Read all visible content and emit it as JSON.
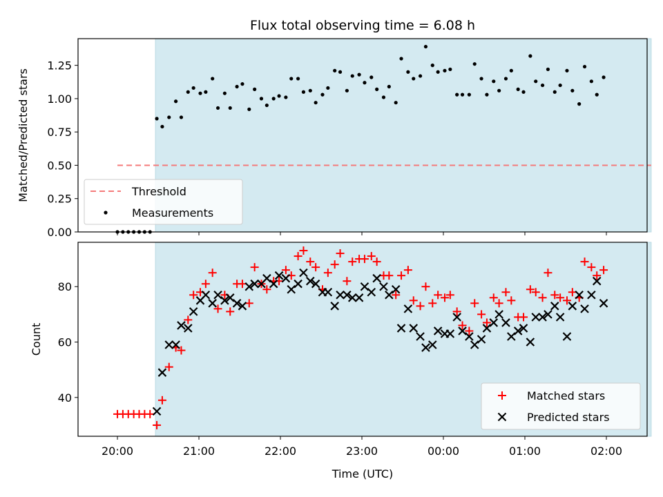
{
  "chart_data": [
    {
      "type": "scatter",
      "title": "Flux total observing time = 6.08 h",
      "xlabel": "",
      "ylabel": "Matched/Predicted stars",
      "ylim": [
        0,
        1.45
      ],
      "yticks": [
        "0.00",
        "0.25",
        "0.50",
        "0.75",
        "1.00",
        "1.25"
      ],
      "shaded_span": {
        "from": "20:28",
        "to": "02:33",
        "color": "#d4eaf1"
      },
      "threshold": {
        "name": "Threshold",
        "value": 0.5,
        "x_from": "20:00",
        "x_to": "02:33",
        "color": "#f47a7a"
      },
      "legend": {
        "position": "lower-left"
      },
      "series": [
        {
          "name": "Measurements",
          "color": "#000000",
          "marker": "dot",
          "points": [
            [
              "20:00",
              0.0
            ],
            [
              "20:04",
              0.0
            ],
            [
              "20:08",
              0.0
            ],
            [
              "20:12",
              0.0
            ],
            [
              "20:16",
              0.0
            ],
            [
              "20:20",
              0.0
            ],
            [
              "20:24",
              0.0
            ],
            [
              "20:29",
              0.85
            ],
            [
              "20:33",
              0.79
            ],
            [
              "20:38",
              0.86
            ],
            [
              "20:43",
              0.98
            ],
            [
              "20:47",
              0.86
            ],
            [
              "20:52",
              1.05
            ],
            [
              "20:56",
              1.08
            ],
            [
              "21:01",
              1.04
            ],
            [
              "21:05",
              1.05
            ],
            [
              "21:10",
              1.15
            ],
            [
              "21:14",
              0.93
            ],
            [
              "21:19",
              1.04
            ],
            [
              "21:23",
              0.93
            ],
            [
              "21:28",
              1.09
            ],
            [
              "21:32",
              1.11
            ],
            [
              "21:37",
              0.92
            ],
            [
              "21:41",
              1.07
            ],
            [
              "21:46",
              1.0
            ],
            [
              "21:50",
              0.95
            ],
            [
              "21:55",
              1.0
            ],
            [
              "21:59",
              1.02
            ],
            [
              "22:04",
              1.01
            ],
            [
              "22:08",
              1.15
            ],
            [
              "22:13",
              1.15
            ],
            [
              "22:17",
              1.05
            ],
            [
              "22:22",
              1.06
            ],
            [
              "22:26",
              0.97
            ],
            [
              "22:31",
              1.03
            ],
            [
              "22:35",
              1.08
            ],
            [
              "22:40",
              1.21
            ],
            [
              "22:44",
              1.2
            ],
            [
              "22:49",
              1.06
            ],
            [
              "22:53",
              1.17
            ],
            [
              "22:58",
              1.18
            ],
            [
              "23:02",
              1.12
            ],
            [
              "23:07",
              1.16
            ],
            [
              "23:11",
              1.07
            ],
            [
              "23:16",
              1.01
            ],
            [
              "23:20",
              1.09
            ],
            [
              "23:25",
              0.97
            ],
            [
              "23:29",
              1.3
            ],
            [
              "23:34",
              1.2
            ],
            [
              "23:38",
              1.15
            ],
            [
              "23:43",
              1.17
            ],
            [
              "23:47",
              1.39
            ],
            [
              "23:52",
              1.25
            ],
            [
              "23:56",
              1.2
            ],
            [
              "00:01",
              1.21
            ],
            [
              "00:05",
              1.22
            ],
            [
              "00:10",
              1.03
            ],
            [
              "00:14",
              1.03
            ],
            [
              "00:19",
              1.03
            ],
            [
              "00:23",
              1.26
            ],
            [
              "00:28",
              1.15
            ],
            [
              "00:32",
              1.03
            ],
            [
              "00:37",
              1.13
            ],
            [
              "00:41",
              1.06
            ],
            [
              "00:46",
              1.15
            ],
            [
              "00:50",
              1.21
            ],
            [
              "00:55",
              1.07
            ],
            [
              "00:59",
              1.05
            ],
            [
              "01:04",
              1.32
            ],
            [
              "01:08",
              1.13
            ],
            [
              "01:13",
              1.1
            ],
            [
              "01:17",
              1.22
            ],
            [
              "01:22",
              1.05
            ],
            [
              "01:26",
              1.1
            ],
            [
              "01:31",
              1.21
            ],
            [
              "01:35",
              1.06
            ],
            [
              "01:40",
              0.96
            ],
            [
              "01:44",
              1.24
            ],
            [
              "01:49",
              1.13
            ],
            [
              "01:53",
              1.03
            ],
            [
              "01:58",
              1.16
            ]
          ]
        }
      ]
    },
    {
      "type": "scatter",
      "title": "",
      "xlabel": "Time (UTC)",
      "ylabel": "Count",
      "ylim": [
        26,
        96
      ],
      "yticks": [
        "40",
        "60",
        "80"
      ],
      "xticks": [
        "20:00",
        "21:00",
        "22:00",
        "23:00",
        "00:00",
        "01:00",
        "02:00"
      ],
      "shaded_span": {
        "from": "20:28",
        "to": "02:33",
        "color": "#d4eaf1"
      },
      "legend": {
        "position": "lower-right"
      },
      "series": [
        {
          "name": "Matched stars",
          "color": "#ff0000",
          "marker": "plus",
          "points": [
            [
              "20:00",
              34
            ],
            [
              "20:04",
              34
            ],
            [
              "20:08",
              34
            ],
            [
              "20:12",
              34
            ],
            [
              "20:16",
              34
            ],
            [
              "20:20",
              34
            ],
            [
              "20:24",
              34
            ],
            [
              "20:29",
              30
            ],
            [
              "20:33",
              39
            ],
            [
              "20:38",
              51
            ],
            [
              "20:43",
              58
            ],
            [
              "20:47",
              57
            ],
            [
              "20:52",
              68
            ],
            [
              "20:56",
              77
            ],
            [
              "21:01",
              78
            ],
            [
              "21:05",
              81
            ],
            [
              "21:10",
              85
            ],
            [
              "21:14",
              72
            ],
            [
              "21:19",
              77
            ],
            [
              "21:23",
              71
            ],
            [
              "21:28",
              81
            ],
            [
              "21:32",
              81
            ],
            [
              "21:37",
              74
            ],
            [
              "21:41",
              87
            ],
            [
              "21:46",
              81
            ],
            [
              "21:50",
              79
            ],
            [
              "21:55",
              82
            ],
            [
              "21:59",
              82
            ],
            [
              "22:04",
              86
            ],
            [
              "22:08",
              84
            ],
            [
              "22:13",
              91
            ],
            [
              "22:17",
              93
            ],
            [
              "22:22",
              89
            ],
            [
              "22:26",
              87
            ],
            [
              "22:31",
              79
            ],
            [
              "22:35",
              85
            ],
            [
              "22:40",
              88
            ],
            [
              "22:44",
              92
            ],
            [
              "22:49",
              82
            ],
            [
              "22:53",
              89
            ],
            [
              "22:58",
              90
            ],
            [
              "23:02",
              90
            ],
            [
              "23:07",
              91
            ],
            [
              "23:11",
              89
            ],
            [
              "23:16",
              84
            ],
            [
              "23:20",
              84
            ],
            [
              "23:25",
              77
            ],
            [
              "23:29",
              84
            ],
            [
              "23:34",
              86
            ],
            [
              "23:38",
              75
            ],
            [
              "23:43",
              73
            ],
            [
              "23:47",
              80
            ],
            [
              "23:52",
              74
            ],
            [
              "23:56",
              77
            ],
            [
              "00:01",
              76
            ],
            [
              "00:05",
              77
            ],
            [
              "00:10",
              71
            ],
            [
              "00:14",
              66
            ],
            [
              "00:19",
              64
            ],
            [
              "00:23",
              74
            ],
            [
              "00:28",
              70
            ],
            [
              "00:32",
              67
            ],
            [
              "00:37",
              76
            ],
            [
              "00:41",
              74
            ],
            [
              "00:46",
              78
            ],
            [
              "00:50",
              75
            ],
            [
              "00:55",
              69
            ],
            [
              "00:59",
              69
            ],
            [
              "01:04",
              79
            ],
            [
              "01:08",
              78
            ],
            [
              "01:13",
              76
            ],
            [
              "01:17",
              85
            ],
            [
              "01:22",
              77
            ],
            [
              "01:26",
              76
            ],
            [
              "01:31",
              75
            ],
            [
              "01:35",
              78
            ],
            [
              "01:40",
              76
            ],
            [
              "01:44",
              89
            ],
            [
              "01:49",
              87
            ],
            [
              "01:53",
              84
            ],
            [
              "01:58",
              86
            ]
          ]
        },
        {
          "name": "Predicted stars",
          "color": "#000000",
          "marker": "x",
          "points": [
            [
              "20:29",
              35
            ],
            [
              "20:33",
              49
            ],
            [
              "20:38",
              59
            ],
            [
              "20:43",
              59
            ],
            [
              "20:47",
              66
            ],
            [
              "20:52",
              65
            ],
            [
              "20:56",
              71
            ],
            [
              "21:01",
              75
            ],
            [
              "21:05",
              77
            ],
            [
              "21:10",
              74
            ],
            [
              "21:14",
              77
            ],
            [
              "21:19",
              75
            ],
            [
              "21:23",
              76
            ],
            [
              "21:28",
              74
            ],
            [
              "21:32",
              73
            ],
            [
              "21:37",
              80
            ],
            [
              "21:41",
              81
            ],
            [
              "21:46",
              81
            ],
            [
              "21:50",
              83
            ],
            [
              "21:55",
              81
            ],
            [
              "21:59",
              84
            ],
            [
              "22:04",
              83
            ],
            [
              "22:08",
              79
            ],
            [
              "22:13",
              81
            ],
            [
              "22:17",
              85
            ],
            [
              "22:22",
              82
            ],
            [
              "22:26",
              81
            ],
            [
              "22:31",
              78
            ],
            [
              "22:35",
              78
            ],
            [
              "22:40",
              73
            ],
            [
              "22:44",
              77
            ],
            [
              "22:49",
              77
            ],
            [
              "22:53",
              76
            ],
            [
              "22:58",
              76
            ],
            [
              "23:02",
              80
            ],
            [
              "23:07",
              78
            ],
            [
              "23:11",
              83
            ],
            [
              "23:16",
              80
            ],
            [
              "23:20",
              77
            ],
            [
              "23:25",
              79
            ],
            [
              "23:29",
              65
            ],
            [
              "23:34",
              72
            ],
            [
              "23:38",
              65
            ],
            [
              "23:43",
              62
            ],
            [
              "23:47",
              58
            ],
            [
              "23:52",
              59
            ],
            [
              "23:56",
              64
            ],
            [
              "00:01",
              63
            ],
            [
              "00:05",
              63
            ],
            [
              "00:10",
              69
            ],
            [
              "00:14",
              64
            ],
            [
              "00:19",
              62
            ],
            [
              "00:23",
              59
            ],
            [
              "00:28",
              61
            ],
            [
              "00:32",
              65
            ],
            [
              "00:37",
              67
            ],
            [
              "00:41",
              70
            ],
            [
              "00:46",
              67
            ],
            [
              "00:50",
              62
            ],
            [
              "00:55",
              64
            ],
            [
              "00:59",
              65
            ],
            [
              "01:04",
              60
            ],
            [
              "01:08",
              69
            ],
            [
              "01:13",
              69
            ],
            [
              "01:17",
              70
            ],
            [
              "01:22",
              73
            ],
            [
              "01:26",
              69
            ],
            [
              "01:31",
              62
            ],
            [
              "01:35",
              73
            ],
            [
              "01:40",
              77
            ],
            [
              "01:44",
              72
            ],
            [
              "01:49",
              77
            ],
            [
              "01:53",
              82
            ],
            [
              "01:58",
              74
            ]
          ]
        }
      ]
    }
  ]
}
